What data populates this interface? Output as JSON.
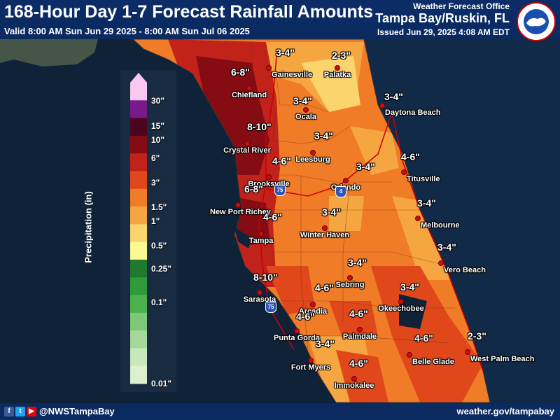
{
  "header": {
    "title": "168-Hour Day 1-7 Forecast Rainfall Amounts",
    "valid": "Valid 8:00 AM Sun Jun 29 2025 - 8:00 AM Sun Jul 06 2025",
    "wfo_label": "Weather Forecast Office",
    "office": "Tampa Bay/Ruskin, FL",
    "issued": "Issued Jun 29, 2025 4:08 AM EDT"
  },
  "legend": {
    "axis_label": "Precipitation (in)",
    "ticks": [
      "30\"",
      "15\"",
      "10\"",
      "6\"",
      "3\"",
      "1.5\"",
      "1\"",
      "0.5\"",
      "0.25\"",
      "0.1\"",
      "0.01\""
    ],
    "colors": [
      "#f8c8f0",
      "#7a1a8a",
      "#4a0620",
      "#860c14",
      "#c1231a",
      "#e0481c",
      "#f07c28",
      "#f6a640",
      "#fbd46e",
      "#fafa90",
      "#1f7a2f",
      "#2f9a3a",
      "#4bb24e",
      "#7cc878",
      "#a6d89c",
      "#c8e8bc",
      "#dcf0d0"
    ]
  },
  "cities": [
    {
      "name": "Gainesville"
    },
    {
      "name": "Palatka"
    },
    {
      "name": "Chiefland"
    },
    {
      "name": "Ocala"
    },
    {
      "name": "Daytona Beach"
    },
    {
      "name": "Crystal River"
    },
    {
      "name": "Leesburg"
    },
    {
      "name": "Brooksville"
    },
    {
      "name": "Titusville"
    },
    {
      "name": "Orlando"
    },
    {
      "name": "New Port Richey"
    },
    {
      "name": "Winter Haven"
    },
    {
      "name": "Melbourne"
    },
    {
      "name": "Tampa"
    },
    {
      "name": "Vero Beach"
    },
    {
      "name": "Sebring"
    },
    {
      "name": "Sarasota"
    },
    {
      "name": "Arcadia"
    },
    {
      "name": "Okeechobee"
    },
    {
      "name": "Palmdale"
    },
    {
      "name": "Punta Gorda"
    },
    {
      "name": "West Palm Beach"
    },
    {
      "name": "Belle Glade"
    },
    {
      "name": "Fort Myers"
    },
    {
      "name": "Immokalee"
    }
  ],
  "amounts": [
    "3-4\"",
    "2-3\"",
    "6-8\"",
    "3-4\"",
    "3-4\"",
    "8-10\"",
    "3-4\"",
    "4-6\"",
    "4-6\"",
    "3-4\"",
    "6-8\"",
    "4-6\"",
    "3-4\"",
    "3-4\"",
    "3-4\"",
    "3-4\"",
    "8-10\"",
    "4-6\"",
    "3-4\"",
    "4-6\"",
    "4-6\"",
    "2-3\"",
    "4-6\"",
    "3-4\"",
    "4-6\""
  ],
  "highways": [
    "75",
    "4",
    "75"
  ],
  "footer": {
    "handle": "@NWSTampaBay",
    "site": "weather.gov/tampabay"
  },
  "social": {
    "facebook": "f",
    "twitter": "t",
    "youtube": "▶"
  }
}
